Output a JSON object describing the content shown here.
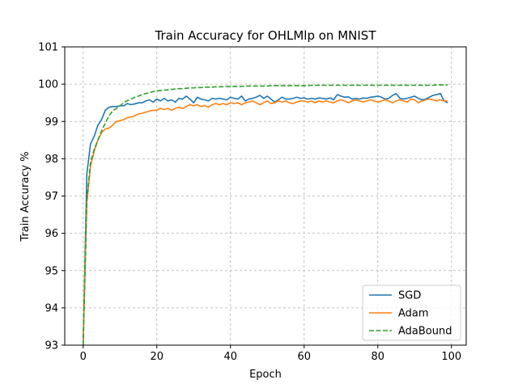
{
  "chart_data": {
    "type": "line",
    "title": "Train Accuracy for OHLMlp on MNIST",
    "xlabel": "Epoch",
    "ylabel": "Train Accuracy %",
    "xlim": [
      -5,
      104
    ],
    "ylim": [
      93,
      101
    ],
    "xticks": [
      0,
      20,
      40,
      60,
      80,
      100
    ],
    "yticks": [
      93,
      94,
      95,
      96,
      97,
      98,
      99,
      100,
      101
    ],
    "grid": true,
    "legend_position": "lower-right",
    "x": [
      0,
      1,
      2,
      3,
      4,
      5,
      6,
      7,
      8,
      9,
      10,
      11,
      12,
      13,
      14,
      15,
      16,
      17,
      18,
      19,
      20,
      21,
      22,
      23,
      24,
      25,
      26,
      27,
      28,
      29,
      30,
      31,
      32,
      33,
      34,
      35,
      36,
      37,
      38,
      39,
      40,
      41,
      42,
      43,
      44,
      45,
      46,
      47,
      48,
      49,
      50,
      51,
      52,
      53,
      54,
      55,
      56,
      57,
      58,
      59,
      60,
      61,
      62,
      63,
      64,
      65,
      66,
      67,
      68,
      69,
      70,
      71,
      72,
      73,
      74,
      75,
      76,
      77,
      78,
      79,
      80,
      81,
      82,
      83,
      84,
      85,
      86,
      87,
      88,
      89,
      90,
      91,
      92,
      93,
      94,
      95,
      96,
      97,
      98,
      99
    ],
    "series": [
      {
        "name": "SGD",
        "color": "#1f77b4",
        "dash": "solid",
        "values": [
          93.0,
          97.6,
          98.4,
          98.6,
          98.9,
          99.05,
          99.3,
          99.38,
          99.4,
          99.4,
          99.42,
          99.42,
          99.48,
          99.45,
          99.47,
          99.5,
          99.5,
          99.55,
          99.58,
          99.52,
          99.6,
          99.55,
          99.62,
          99.55,
          99.58,
          99.52,
          99.62,
          99.6,
          99.68,
          99.6,
          99.5,
          99.65,
          99.6,
          99.58,
          99.55,
          99.62,
          99.6,
          99.62,
          99.6,
          99.58,
          99.65,
          99.62,
          99.6,
          99.68,
          99.55,
          99.6,
          99.62,
          99.65,
          99.7,
          99.62,
          99.68,
          99.6,
          99.52,
          99.58,
          99.65,
          99.6,
          99.6,
          99.62,
          99.65,
          99.62,
          99.63,
          99.6,
          99.62,
          99.6,
          99.63,
          99.62,
          99.6,
          99.63,
          99.58,
          99.72,
          99.68,
          99.65,
          99.66,
          99.6,
          99.62,
          99.6,
          99.63,
          99.62,
          99.65,
          99.66,
          99.68,
          99.65,
          99.6,
          99.62,
          99.7,
          99.75,
          99.62,
          99.6,
          99.62,
          99.65,
          99.68,
          99.62,
          99.58,
          99.6,
          99.65,
          99.7,
          99.72,
          99.75,
          99.55,
          99.5
        ]
      },
      {
        "name": "Adam",
        "color": "#ff7f0e",
        "dash": "solid",
        "values": [
          93.0,
          96.8,
          97.8,
          98.2,
          98.5,
          98.7,
          98.8,
          98.82,
          98.9,
          99.0,
          99.02,
          99.05,
          99.1,
          99.12,
          99.15,
          99.2,
          99.22,
          99.25,
          99.28,
          99.3,
          99.3,
          99.35,
          99.32,
          99.35,
          99.3,
          99.35,
          99.38,
          99.35,
          99.4,
          99.45,
          99.42,
          99.45,
          99.4,
          99.43,
          99.38,
          99.45,
          99.48,
          99.45,
          99.48,
          99.45,
          99.5,
          99.48,
          99.5,
          99.45,
          99.5,
          99.52,
          99.55,
          99.5,
          99.45,
          99.5,
          99.55,
          99.48,
          99.5,
          99.55,
          99.52,
          99.55,
          99.5,
          99.48,
          99.52,
          99.55,
          99.55,
          99.52,
          99.55,
          99.5,
          99.55,
          99.52,
          99.55,
          99.52,
          99.5,
          99.55,
          99.58,
          99.55,
          99.5,
          99.55,
          99.58,
          99.55,
          99.52,
          99.55,
          99.58,
          99.55,
          99.52,
          99.55,
          99.58,
          99.55,
          99.5,
          99.55,
          99.58,
          99.55,
          99.52,
          99.6,
          99.58,
          99.5,
          99.55,
          99.58,
          99.6,
          99.58,
          99.55,
          99.58,
          99.55,
          99.55
        ]
      },
      {
        "name": "AdaBound",
        "color": "#2ca02c",
        "dash": "dashed",
        "values": [
          93.0,
          96.9,
          97.9,
          98.25,
          98.5,
          98.75,
          98.95,
          99.15,
          99.28,
          99.35,
          99.42,
          99.5,
          99.56,
          99.6,
          99.65,
          99.68,
          99.72,
          99.75,
          99.77,
          99.8,
          99.82,
          99.83,
          99.84,
          99.85,
          99.86,
          99.87,
          99.88,
          99.88,
          99.89,
          99.9,
          99.9,
          99.91,
          99.91,
          99.92,
          99.92,
          99.92,
          99.93,
          99.93,
          99.93,
          99.94,
          99.94,
          99.94,
          99.94,
          99.94,
          99.95,
          99.95,
          99.95,
          99.95,
          99.95,
          99.95,
          99.95,
          99.96,
          99.96,
          99.96,
          99.96,
          99.96,
          99.96,
          99.96,
          99.96,
          99.96,
          99.96,
          99.96,
          99.97,
          99.97,
          99.97,
          99.97,
          99.97,
          99.97,
          99.97,
          99.97,
          99.97,
          99.97,
          99.97,
          99.97,
          99.97,
          99.97,
          99.97,
          99.97,
          99.97,
          99.97,
          99.97,
          99.97,
          99.97,
          99.97,
          99.97,
          99.97,
          99.97,
          99.97,
          99.97,
          99.97,
          99.97,
          99.97,
          99.97,
          99.97,
          99.97,
          99.97,
          99.98,
          99.98,
          99.98,
          99.98
        ]
      }
    ]
  }
}
